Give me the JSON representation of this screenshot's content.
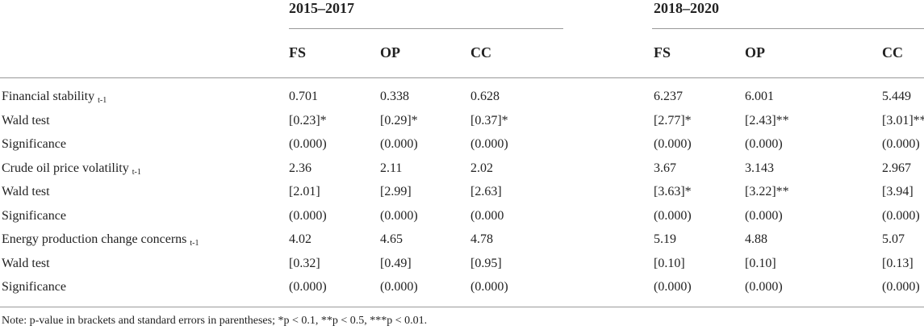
{
  "header": {
    "groups": [
      "2015–2017",
      "2018–2020"
    ],
    "columns": [
      "FS",
      "OP",
      "CC",
      "FS",
      "OP",
      "CC"
    ]
  },
  "table": {
    "rows": [
      {
        "label": "Financial stability",
        "sub": "t-1",
        "cells": [
          "0.701",
          "0.338",
          "0.628",
          "6.237",
          "6.001",
          "5.449"
        ]
      },
      {
        "label": "Wald test",
        "cells": [
          "[0.23]*",
          "[0.29]*",
          "[0.37]*",
          "[2.77]*",
          "[2.43]**",
          "[3.01]**"
        ]
      },
      {
        "label": "Significance",
        "cells": [
          "(0.000)",
          "(0.000)",
          "(0.000)",
          "(0.000)",
          "(0.000)",
          "(0.000)"
        ]
      },
      {
        "label": "Crude oil price volatility",
        "sub": "t-1",
        "cells": [
          "2.36",
          "2.11",
          "2.02",
          "3.67",
          "3.143",
          "2.967"
        ]
      },
      {
        "label": "Wald test",
        "cells": [
          "[2.01]",
          "[2.99]",
          "[2.63]",
          "[3.63]*",
          "[3.22]**",
          "[3.94]"
        ]
      },
      {
        "label": "Significance",
        "cells": [
          "(0.000)",
          "(0.000)",
          "(0.000",
          "(0.000)",
          "(0.000)",
          "(0.000)"
        ]
      },
      {
        "label": "Energy production change concerns",
        "sub": "t-1",
        "cells": [
          "4.02",
          "4.65",
          "4.78",
          "5.19",
          "4.88",
          "5.07"
        ]
      },
      {
        "label": "Wald test",
        "cells": [
          "[0.32]",
          "[0.49]",
          "[0.95]",
          "[0.10]",
          "[0.10]",
          "[0.13]"
        ]
      },
      {
        "label": "Significance",
        "cells": [
          "(0.000)",
          "(0.000)",
          "(0.000)",
          "(0.000)",
          "(0.000)",
          "(0.000)"
        ]
      }
    ]
  },
  "note": "Note: p-value in brackets and standard errors in parentheses; *p < 0.1, **p < 0.5, ***p < 0.01."
}
